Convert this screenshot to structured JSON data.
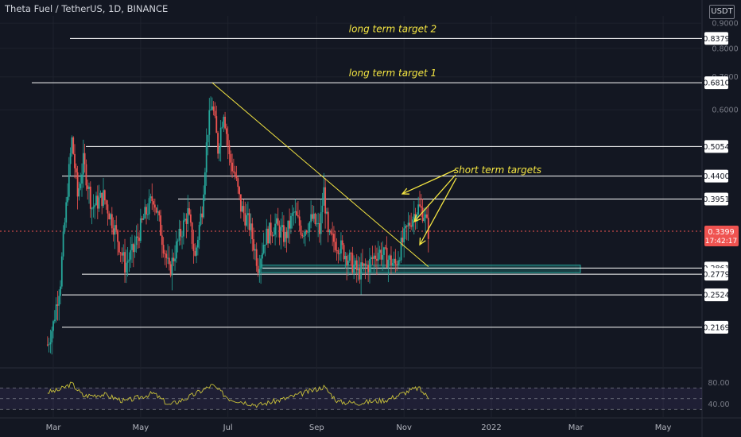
{
  "chart_title": "Theta Fuel / TetherUS, 1D, BINANCE",
  "currency": "USDT",
  "colors": {
    "background": "#131722",
    "grid": "#1e222d",
    "up": "#26a69a",
    "down": "#ef5350",
    "annotation": "#f5e642",
    "level_line": "#ffffff",
    "support_zone": "#26a69a",
    "rsi_line": "#c9c13a",
    "rsi_band": "#7e57c2",
    "price_badge": "#ef5350"
  },
  "chart_data": [
    {
      "type": "candlestick",
      "title": "Theta Fuel / TetherUS, 1D, BINANCE",
      "x_ticks": [
        "Mar",
        "May",
        "Jul",
        "Sep",
        "Nov",
        "2022",
        "Mar",
        "May"
      ],
      "y_ticks": [
        "0.9000",
        "0.8000",
        "0.7000",
        "0.6000"
      ],
      "ylim": [
        0.18,
        0.93
      ],
      "current_price": "0.3399",
      "countdown": "17:42:17",
      "levels": [
        {
          "value": "0.8379",
          "label": "long term target 2"
        },
        {
          "value": "0.6810",
          "label": "long term target 1"
        },
        {
          "value": "0.5054",
          "label": ""
        },
        {
          "value": "0.4400",
          "label": ""
        },
        {
          "value": "0.3951",
          "label": ""
        },
        {
          "value": "0.2861",
          "label": ""
        },
        {
          "value": "0.2779",
          "label": ""
        },
        {
          "value": "0.2524",
          "label": ""
        },
        {
          "value": "0.2169",
          "label": ""
        }
      ],
      "annotations": [
        "long term target 2",
        "long term target 1",
        "short term targets"
      ],
      "support_zone": [
        0.28,
        0.29
      ],
      "trendline": [
        {
          "date": "2021-06-20",
          "price": 0.681
        },
        {
          "date": "2021-11-18",
          "price": 0.288
        }
      ],
      "price_path": [
        [
          "2021-02-25",
          0.2
        ],
        [
          "2021-03-01",
          0.22
        ],
        [
          "2021-03-06",
          0.27
        ],
        [
          "2021-03-10",
          0.38
        ],
        [
          "2021-03-14",
          0.52
        ],
        [
          "2021-03-18",
          0.4
        ],
        [
          "2021-03-22",
          0.47
        ],
        [
          "2021-03-28",
          0.38
        ],
        [
          "2021-04-05",
          0.4
        ],
        [
          "2021-04-12",
          0.35
        ],
        [
          "2021-04-20",
          0.29
        ],
        [
          "2021-04-26",
          0.31
        ],
        [
          "2021-05-03",
          0.36
        ],
        [
          "2021-05-10",
          0.4
        ],
        [
          "2021-05-16",
          0.33
        ],
        [
          "2021-05-21",
          0.28
        ],
        [
          "2021-05-28",
          0.33
        ],
        [
          "2021-06-03",
          0.37
        ],
        [
          "2021-06-08",
          0.3
        ],
        [
          "2021-06-13",
          0.38
        ],
        [
          "2021-06-17",
          0.55
        ],
        [
          "2021-06-20",
          0.62
        ],
        [
          "2021-06-24",
          0.5
        ],
        [
          "2021-06-28",
          0.6
        ],
        [
          "2021-07-02",
          0.48
        ],
        [
          "2021-07-06",
          0.44
        ],
        [
          "2021-07-10",
          0.38
        ],
        [
          "2021-07-16",
          0.35
        ],
        [
          "2021-07-22",
          0.29
        ],
        [
          "2021-07-27",
          0.33
        ],
        [
          "2021-08-03",
          0.35
        ],
        [
          "2021-08-10",
          0.33
        ],
        [
          "2021-08-16",
          0.37
        ],
        [
          "2021-08-22",
          0.34
        ],
        [
          "2021-08-29",
          0.36
        ],
        [
          "2021-09-03",
          0.34
        ],
        [
          "2021-09-06",
          0.41
        ],
        [
          "2021-09-09",
          0.33
        ],
        [
          "2021-09-16",
          0.32
        ],
        [
          "2021-09-23",
          0.3
        ],
        [
          "2021-09-30",
          0.28
        ],
        [
          "2021-10-07",
          0.29
        ],
        [
          "2021-10-14",
          0.31
        ],
        [
          "2021-10-20",
          0.3
        ],
        [
          "2021-10-26",
          0.29
        ],
        [
          "2021-11-01",
          0.33
        ],
        [
          "2021-11-06",
          0.36
        ],
        [
          "2021-11-11",
          0.38
        ],
        [
          "2021-11-15",
          0.37
        ],
        [
          "2021-11-18",
          0.34
        ]
      ]
    },
    {
      "type": "line",
      "title": "RSI",
      "y_ticks": [
        "80.00",
        "40.00"
      ],
      "band": [
        30,
        70
      ],
      "rsi_path": [
        [
          "2021-02-25",
          62
        ],
        [
          "2021-03-05",
          66
        ],
        [
          "2021-03-14",
          78
        ],
        [
          "2021-03-22",
          55
        ],
        [
          "2021-04-05",
          58
        ],
        [
          "2021-04-20",
          45
        ],
        [
          "2021-05-10",
          60
        ],
        [
          "2021-05-21",
          38
        ],
        [
          "2021-06-03",
          52
        ],
        [
          "2021-06-20",
          75
        ],
        [
          "2021-07-02",
          50
        ],
        [
          "2021-07-22",
          38
        ],
        [
          "2021-08-10",
          50
        ],
        [
          "2021-09-06",
          72
        ],
        [
          "2021-09-16",
          44
        ],
        [
          "2021-09-30",
          42
        ],
        [
          "2021-10-20",
          48
        ],
        [
          "2021-11-06",
          66
        ],
        [
          "2021-11-11",
          70
        ],
        [
          "2021-11-18",
          52
        ]
      ]
    }
  ]
}
